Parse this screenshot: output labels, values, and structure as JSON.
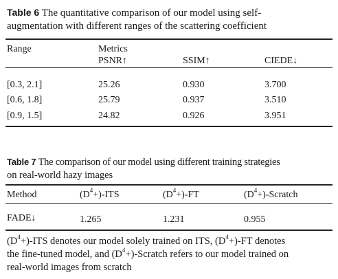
{
  "table6": {
    "label": "Table 6",
    "caption_line1": "The quantitative comparison of our model using self-",
    "caption_line2": "augmentation with different ranges of the scattering coefficient",
    "header": {
      "range": "Range",
      "metrics": "Metrics",
      "psnr": "PSNR↑",
      "ssim": "SSIM↑",
      "ciede": "CIEDE↓"
    },
    "rows": [
      {
        "range": "[0.3, 2.1]",
        "psnr": "25.26",
        "ssim": "0.930",
        "ciede": "3.700"
      },
      {
        "range": "[0.6, 1.8]",
        "psnr": "25.79",
        "ssim": "0.937",
        "ciede": "3.510"
      },
      {
        "range": "[0.9, 1.5]",
        "psnr": "24.82",
        "ssim": "0.926",
        "ciede": "3.951"
      }
    ]
  },
  "table7": {
    "label": "Table 7",
    "caption_line1": "The comparison of our model using different training strategies",
    "caption_line2": "on real-world hazy images",
    "header": {
      "method": "Method",
      "its": "(D⁴+)-ITS",
      "ft": "(D⁴+)-FT",
      "scratch": "(D⁴+)-Scratch"
    },
    "row": {
      "metric": "FADE↓",
      "its": "1.265",
      "ft": "1.231",
      "scratch": "0.955"
    },
    "note_line1": "(D⁴+)-ITS denotes our model solely trained on ITS, (D⁴+)-FT denotes",
    "note_line2": "the fine-tuned model, and (D⁴+)-Scratch refers to our model trained on",
    "note_line3": "real-world images from scratch"
  }
}
